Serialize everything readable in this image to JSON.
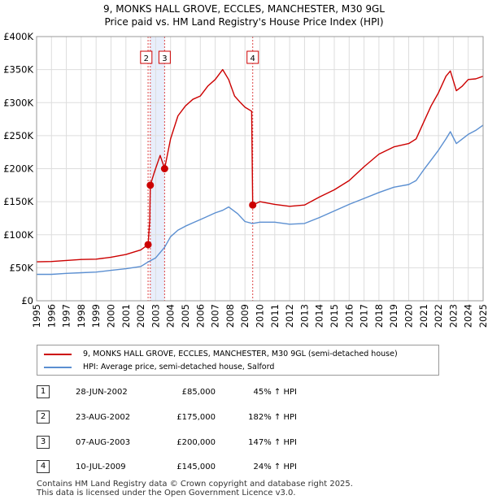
{
  "title_line1": "9, MONKS HALL GROVE, ECCLES, MANCHESTER, M30 9GL",
  "title_line2": "Price paid vs. HM Land Registry's House Price Index (HPI)",
  "colors": {
    "property": "#cc0000",
    "hpi": "#5b8fd1",
    "grid": "#dddddd",
    "shade": "#e8eefb"
  },
  "legend": {
    "property_label": "9, MONKS HALL GROVE, ECCLES, MANCHESTER, M30 9GL (semi-detached house)",
    "hpi_label": "HPI: Average price, semi-detached house, Salford"
  },
  "transactions": [
    {
      "num": "1",
      "date": "28-JUN-2002",
      "price": "£85,000",
      "hpi": "45% ↑ HPI"
    },
    {
      "num": "2",
      "date": "23-AUG-2002",
      "price": "£175,000",
      "hpi": "182% ↑ HPI"
    },
    {
      "num": "3",
      "date": "07-AUG-2003",
      "price": "£200,000",
      "hpi": "147% ↑ HPI"
    },
    {
      "num": "4",
      "date": "10-JUL-2009",
      "price": "£145,000",
      "hpi": "24% ↑ HPI"
    }
  ],
  "footer_line1": "Contains HM Land Registry data © Crown copyright and database right 2025.",
  "footer_line2": "This data is licensed under the Open Government Licence v3.0.",
  "chart_data": {
    "type": "line",
    "title": "9, MONKS HALL GROVE, ECCLES, MANCHESTER, M30 9GL",
    "subtitle": "Price paid vs. HM Land Registry's House Price Index (HPI)",
    "xlim": [
      1995,
      2025
    ],
    "ylim": [
      0,
      400000
    ],
    "x_ticks": [
      1995,
      1996,
      1997,
      1998,
      1999,
      2000,
      2001,
      2002,
      2003,
      2004,
      2005,
      2006,
      2007,
      2008,
      2009,
      2010,
      2011,
      2012,
      2013,
      2014,
      2015,
      2016,
      2017,
      2018,
      2019,
      2020,
      2021,
      2022,
      2023,
      2024,
      2025
    ],
    "y_ticks": [
      0,
      50000,
      100000,
      150000,
      200000,
      250000,
      300000,
      350000,
      400000
    ],
    "y_tick_labels": [
      "£0",
      "£50K",
      "£100K",
      "£150K",
      "£200K",
      "£250K",
      "£300K",
      "£350K",
      "£400K"
    ],
    "grid": true,
    "legend_position": "below",
    "sales": [
      {
        "label": "1",
        "x": 2002.49,
        "y": 85000
      },
      {
        "label": "2",
        "x": 2002.64,
        "y": 175000
      },
      {
        "label": "3",
        "x": 2003.6,
        "y": 200000
      },
      {
        "label": "4",
        "x": 2009.52,
        "y": 145000
      }
    ],
    "shaded_span": [
      2002.64,
      2003.6
    ],
    "series": [
      {
        "name": "9, MONKS HALL GROVE, ECCLES, MANCHESTER, M30 9GL (semi-detached house)",
        "x": [
          1995,
          1996,
          1997,
          1998,
          1999,
          2000,
          2001,
          2002,
          2002.49,
          2002.6,
          2002.64,
          2002.9,
          2003.3,
          2003.6,
          2004,
          2004.5,
          2005,
          2005.5,
          2006,
          2006.5,
          2007,
          2007.5,
          2007.9,
          2008.3,
          2008.7,
          2009.0,
          2009.45,
          2009.52,
          2010,
          2011,
          2012,
          2013,
          2014,
          2015,
          2016,
          2017,
          2018,
          2019,
          2020,
          2020.5,
          2021,
          2021.5,
          2022,
          2022.5,
          2022.8,
          2023.2,
          2023.6,
          2024,
          2024.5,
          2025
        ],
        "y": [
          59000,
          59500,
          61000,
          62500,
          63000,
          66000,
          70000,
          77000,
          85000,
          122000,
          175000,
          194000,
          220000,
          200000,
          245000,
          280000,
          295000,
          305000,
          310000,
          325000,
          335000,
          350000,
          335000,
          310000,
          300000,
          293000,
          287000,
          145000,
          150000,
          146000,
          143000,
          145000,
          157000,
          168000,
          182000,
          203000,
          222000,
          233000,
          238000,
          245000,
          270000,
          295000,
          315000,
          340000,
          348000,
          318000,
          325000,
          335000,
          336000,
          340000
        ]
      },
      {
        "name": "HPI: Average price, semi-detached house, Salford",
        "x": [
          1995,
          1996,
          1997,
          1998,
          1999,
          2000,
          2001,
          2002,
          2002.5,
          2003,
          2003.6,
          2004,
          2004.5,
          2005,
          2005.5,
          2006,
          2006.5,
          2007,
          2007.5,
          2007.9,
          2008.5,
          2009,
          2009.5,
          2010,
          2011,
          2012,
          2013,
          2014,
          2015,
          2016,
          2017,
          2018,
          2019,
          2020,
          2020.5,
          2021,
          2021.5,
          2022,
          2022.5,
          2022.8,
          2023.2,
          2023.6,
          2024,
          2024.5,
          2025
        ],
        "y": [
          40000,
          40000,
          41500,
          42500,
          43500,
          46000,
          48500,
          52000,
          59000,
          65000,
          81000,
          97000,
          107000,
          113000,
          118000,
          123000,
          128000,
          133000,
          137000,
          142000,
          132000,
          120000,
          117000,
          119000,
          119000,
          116000,
          117000,
          126000,
          136000,
          146000,
          155000,
          164000,
          172000,
          176000,
          182000,
          198000,
          213000,
          228000,
          245000,
          256000,
          238000,
          245000,
          252000,
          258000,
          266000
        ]
      }
    ]
  }
}
